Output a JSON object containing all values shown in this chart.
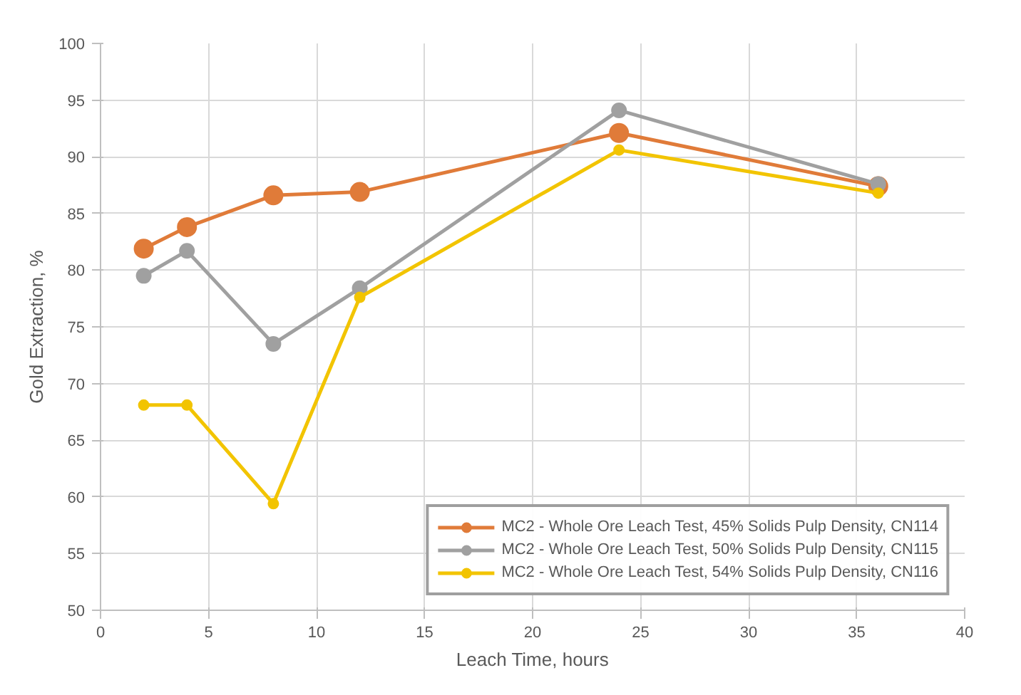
{
  "chart_data": {
    "type": "line",
    "xlabel": "Leach Time, hours",
    "ylabel": "Gold Extraction, %",
    "x": [
      2,
      4,
      8,
      12,
      24,
      36
    ],
    "series": [
      {
        "name": "MC2 - Whole Ore Leach Test, 45% Solids Pulp Density, CN114",
        "color": "#e07b39",
        "values": [
          81.9,
          83.8,
          86.6,
          86.9,
          92.1,
          87.4
        ]
      },
      {
        "name": "MC2 - Whole Ore Leach Test, 50% Solids Pulp Density, CN115",
        "color": "#a0a0a0",
        "values": [
          79.5,
          81.7,
          73.5,
          78.4,
          94.1,
          87.6
        ]
      },
      {
        "name": "MC2 - Whole Ore Leach Test, 54% Solids Pulp Density, CN116",
        "color": "#f2c400",
        "values": [
          68.1,
          68.1,
          59.4,
          77.6,
          90.6,
          86.8
        ]
      }
    ],
    "xlim": [
      0,
      40
    ],
    "xticks": [
      0,
      5,
      10,
      15,
      20,
      25,
      30,
      35,
      40
    ],
    "ylim": [
      50,
      100
    ],
    "yticks": [
      50,
      55,
      60,
      65,
      70,
      75,
      80,
      85,
      90,
      95,
      100
    ],
    "grid": true,
    "legend": "bottom right",
    "marker": "circle",
    "line_style": "solid"
  }
}
